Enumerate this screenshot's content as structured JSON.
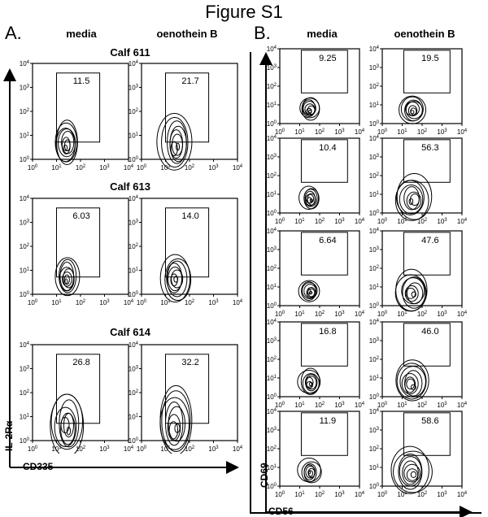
{
  "figure_title": "Figure S1",
  "panel_a": {
    "letter": "A.",
    "col_headers": [
      "media",
      "oenothein B"
    ],
    "calves": [
      {
        "label": "Calf 611",
        "values": [
          "11.5",
          "21.7"
        ]
      },
      {
        "label": "Calf 613",
        "values": [
          "6.03",
          "14.0"
        ]
      },
      {
        "label": "Calf 614",
        "values": [
          "26.8",
          "32.2"
        ]
      }
    ],
    "x_axis_label": "CD335",
    "y_axis_label": "IL-2Rα"
  },
  "panel_b": {
    "letter": "B.",
    "col_headers": [
      "media",
      "oenothein B"
    ],
    "rows": [
      [
        "9.25",
        "19.5"
      ],
      [
        "10.4",
        "56.3"
      ],
      [
        "6.64",
        "47.6"
      ],
      [
        "16.8",
        "46.0"
      ],
      [
        "11.9",
        "58.6"
      ]
    ],
    "x_axis_label": "CD56",
    "y_axis_label": "CD69"
  },
  "tick_labels": {
    "base": "10",
    "exponents": [
      "0",
      "1",
      "2",
      "3",
      "4"
    ]
  }
}
